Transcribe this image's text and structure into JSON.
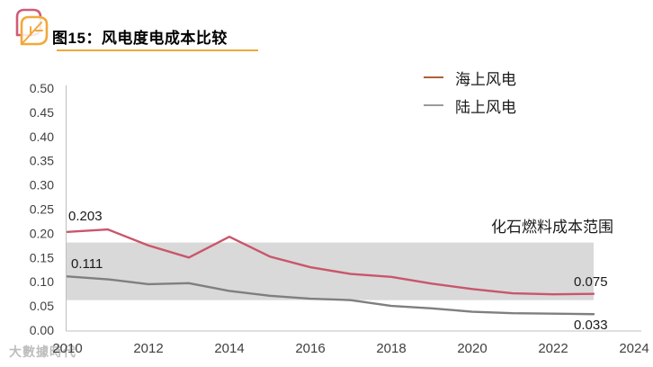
{
  "header": {
    "figure_title": "图15：风电度电成本比较"
  },
  "colors": {
    "accent_gold": "#EBA93B",
    "logo_pink": "#D05C78",
    "logo_yellow": "#F2A93B",
    "offshore_line": "#C9566B",
    "onshore_line": "#7F7F7F",
    "legend_offshore_swatch": "#AC6238",
    "legend_onshore_swatch": "#9B9B9B",
    "band_fill": "#D9D9D9",
    "axis_line": "#BFBFBF",
    "axis_text": "#404040"
  },
  "legend": {
    "items": [
      {
        "label": "海上风电"
      },
      {
        "label": "陆上风电"
      }
    ]
  },
  "annotations": {
    "offshore_start": "0.203",
    "onshore_start": "0.111",
    "offshore_end": "0.075",
    "onshore_end": "0.033",
    "band_label": "化石燃料成本范围"
  },
  "watermark": {
    "text": "大數據時代"
  },
  "chart_data": {
    "type": "line",
    "title": "图15：风电度电成本比较",
    "x": [
      2010,
      2011,
      2012,
      2013,
      2014,
      2015,
      2016,
      2017,
      2018,
      2019,
      2020,
      2021,
      2022,
      2023
    ],
    "series": [
      {
        "name": "海上风电",
        "color": "#C9566B",
        "values": [
          0.203,
          0.208,
          0.175,
          0.15,
          0.193,
          0.152,
          0.13,
          0.116,
          0.11,
          0.096,
          0.085,
          0.076,
          0.074,
          0.075
        ]
      },
      {
        "name": "陆上风电",
        "color": "#7F7F7F",
        "values": [
          0.111,
          0.105,
          0.095,
          0.097,
          0.081,
          0.071,
          0.065,
          0.062,
          0.05,
          0.045,
          0.038,
          0.035,
          0.034,
          0.033
        ]
      }
    ],
    "band": {
      "label": "化石燃料成本范围",
      "x_range": [
        2010,
        2023
      ],
      "y_range": [
        0.062,
        0.181
      ],
      "color": "#D9D9D9"
    },
    "ylim": [
      0,
      0.5
    ],
    "ytick_step": 0.05,
    "xticks": [
      2010,
      2012,
      2014,
      2016,
      2018,
      2020,
      2022,
      2024
    ],
    "xlabel": "",
    "ylabel": "",
    "grid": false,
    "legend_position": "top-right"
  }
}
